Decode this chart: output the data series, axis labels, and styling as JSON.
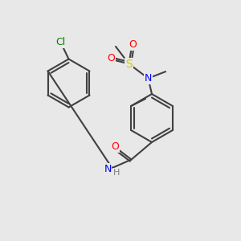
{
  "bg_color": "#e8e8e8",
  "bond_color": "#404040",
  "bond_width": 1.5,
  "colors": {
    "C": "#000000",
    "N": "#0000ff",
    "O": "#ff0000",
    "S": "#cccc00",
    "Cl": "#008000",
    "H": "#808080"
  },
  "font_size": 9,
  "font_size_small": 8
}
